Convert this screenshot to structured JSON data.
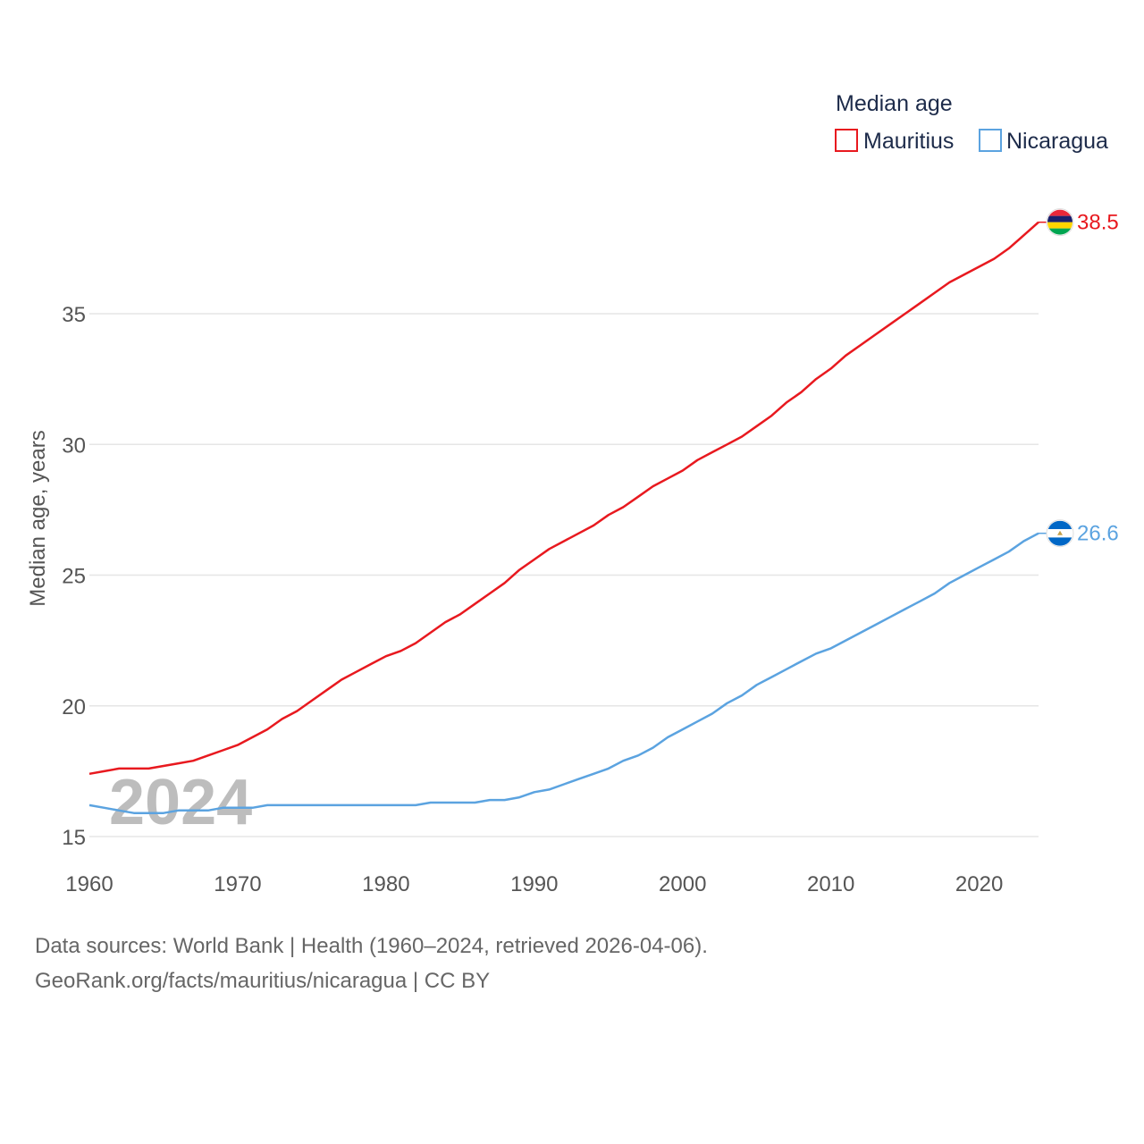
{
  "chart_data": {
    "type": "line",
    "legend_title": "Median age",
    "ylabel": "Median age, years",
    "xlabel": "",
    "xlim": [
      1960,
      2024
    ],
    "ylim": [
      15,
      40
    ],
    "yticks": [
      15,
      20,
      25,
      30,
      35
    ],
    "xticks": [
      1960,
      1970,
      1980,
      1990,
      2000,
      2010,
      2020
    ],
    "year_watermark": "2024",
    "x": [
      1960,
      1961,
      1962,
      1963,
      1964,
      1965,
      1966,
      1967,
      1968,
      1969,
      1970,
      1971,
      1972,
      1973,
      1974,
      1975,
      1976,
      1977,
      1978,
      1979,
      1980,
      1981,
      1982,
      1983,
      1984,
      1985,
      1986,
      1987,
      1988,
      1989,
      1990,
      1991,
      1992,
      1993,
      1994,
      1995,
      1996,
      1997,
      1998,
      1999,
      2000,
      2001,
      2002,
      2003,
      2004,
      2005,
      2006,
      2007,
      2008,
      2009,
      2010,
      2011,
      2012,
      2013,
      2014,
      2015,
      2016,
      2017,
      2018,
      2019,
      2020,
      2021,
      2022,
      2023,
      2024
    ],
    "series": [
      {
        "name": "Mauritius",
        "color": "#e8191f",
        "end_label": "38.5",
        "values": [
          17.4,
          17.5,
          17.6,
          17.6,
          17.6,
          17.7,
          17.8,
          17.9,
          18.1,
          18.3,
          18.5,
          18.8,
          19.1,
          19.5,
          19.8,
          20.2,
          20.6,
          21.0,
          21.3,
          21.6,
          21.9,
          22.1,
          22.4,
          22.8,
          23.2,
          23.5,
          23.9,
          24.3,
          24.7,
          25.2,
          25.6,
          26.0,
          26.3,
          26.6,
          26.9,
          27.3,
          27.6,
          28.0,
          28.4,
          28.7,
          29.0,
          29.4,
          29.7,
          30.0,
          30.3,
          30.7,
          31.1,
          31.6,
          32.0,
          32.5,
          32.9,
          33.4,
          33.8,
          34.2,
          34.6,
          35.0,
          35.4,
          35.8,
          36.2,
          36.5,
          36.8,
          37.1,
          37.5,
          38.0,
          38.5
        ]
      },
      {
        "name": "Nicaragua",
        "color": "#5ba3e0",
        "end_label": "26.6",
        "values": [
          16.2,
          16.1,
          16.0,
          15.9,
          15.9,
          15.9,
          16.0,
          16.0,
          16.0,
          16.1,
          16.1,
          16.1,
          16.2,
          16.2,
          16.2,
          16.2,
          16.2,
          16.2,
          16.2,
          16.2,
          16.2,
          16.2,
          16.2,
          16.3,
          16.3,
          16.3,
          16.3,
          16.4,
          16.4,
          16.5,
          16.7,
          16.8,
          17.0,
          17.2,
          17.4,
          17.6,
          17.9,
          18.1,
          18.4,
          18.8,
          19.1,
          19.4,
          19.7,
          20.1,
          20.4,
          20.8,
          21.1,
          21.4,
          21.7,
          22.0,
          22.2,
          22.5,
          22.8,
          23.1,
          23.4,
          23.7,
          24.0,
          24.3,
          24.7,
          25.0,
          25.3,
          25.6,
          25.9,
          26.3,
          26.6
        ]
      }
    ]
  },
  "footer": {
    "line1": "Data sources: World Bank | Health (1960–2024, retrieved 2026-04-06).",
    "line2": "GeoRank.org/facts/mauritius/nicaragua | CC BY"
  }
}
